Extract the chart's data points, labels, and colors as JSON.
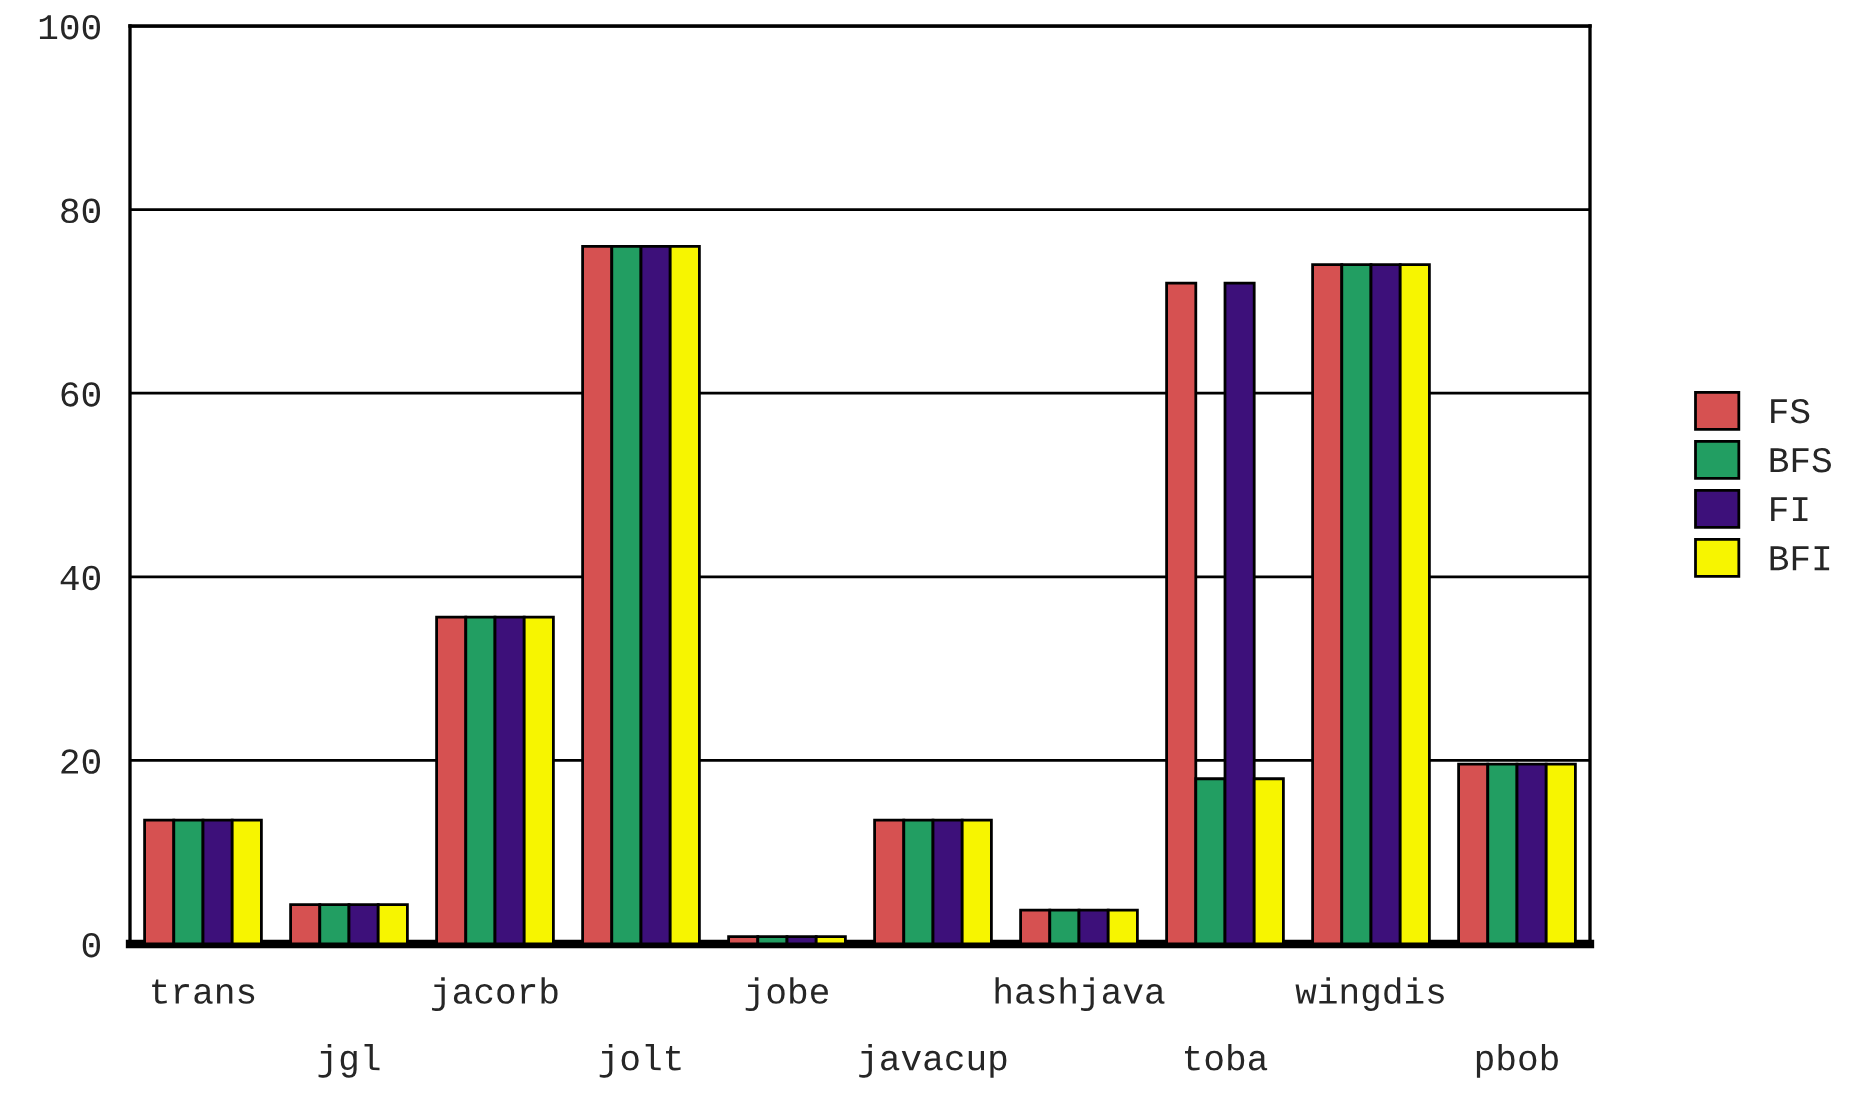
{
  "chart_data": {
    "type": "bar",
    "categories": [
      "trans",
      "jgl",
      "jacorb",
      "jolt",
      "jobe",
      "javacup",
      "hashjava",
      "toba",
      "wingdis",
      "pbob"
    ],
    "series": [
      {
        "name": "FS",
        "color": "#d65151",
        "values": [
          13.5,
          4.3,
          35.6,
          76,
          0.8,
          13.5,
          3.7,
          72,
          74,
          19.6
        ]
      },
      {
        "name": "BFS",
        "color": "#229e62",
        "values": [
          13.5,
          4.3,
          35.6,
          76,
          0.8,
          13.5,
          3.7,
          18,
          74,
          19.6
        ]
      },
      {
        "name": "FI",
        "color": "#3d107a",
        "values": [
          13.5,
          4.3,
          35.6,
          76,
          0.8,
          13.5,
          3.7,
          72,
          74,
          19.6
        ]
      },
      {
        "name": "BFI",
        "color": "#f7f500",
        "values": [
          13.5,
          4.3,
          35.6,
          76,
          0.8,
          13.5,
          3.7,
          18,
          74,
          19.6
        ]
      }
    ],
    "ylim": [
      0,
      100
    ],
    "yticks": [
      0,
      20,
      40,
      60,
      80,
      100
    ],
    "grid": "y",
    "legend": "right"
  }
}
